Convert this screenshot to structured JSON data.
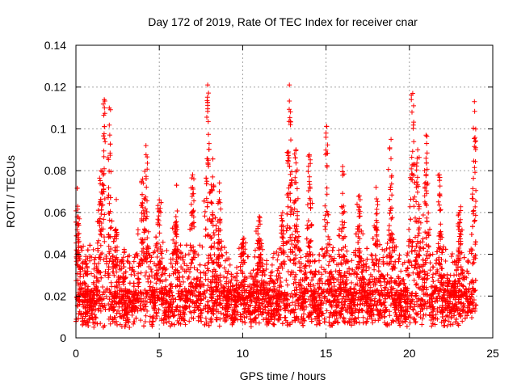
{
  "chart_data": {
    "type": "scatter",
    "title": "Day 172 of 2019, Rate Of TEC Index for receiver cnar",
    "xlabel": "GPS time / hours",
    "ylabel": "ROTI / TECUs",
    "xlim": [
      0,
      25
    ],
    "ylim": [
      0,
      0.14
    ],
    "xticks": [
      0,
      5,
      10,
      15,
      20,
      25
    ],
    "xtick_labels": [
      "0",
      "5",
      "10",
      "15",
      "20",
      "25"
    ],
    "yticks": [
      0,
      0.02,
      0.04,
      0.06,
      0.08,
      0.1,
      0.12,
      0.14
    ],
    "ytick_labels": [
      "0",
      "0.02",
      "0.04",
      "0.06",
      "0.08",
      "0.1",
      "0.12",
      "0.14"
    ],
    "grid": true,
    "marker": "+",
    "color": "#ff0000",
    "series": [
      {
        "name": "ROTI",
        "notes": "Dense cloud of ROTI values spanning 0-24 h; baseline ~0.005-0.04 TECU/min with peaks listed below",
        "peaks": [
          {
            "x": 0.1,
            "y": 0.063
          },
          {
            "x": 1.5,
            "y": 0.08
          },
          {
            "x": 1.7,
            "y": 0.114
          },
          {
            "x": 2.0,
            "y": 0.11
          },
          {
            "x": 2.4,
            "y": 0.052
          },
          {
            "x": 4.0,
            "y": 0.076
          },
          {
            "x": 4.2,
            "y": 0.092
          },
          {
            "x": 5.0,
            "y": 0.066
          },
          {
            "x": 6.0,
            "y": 0.058
          },
          {
            "x": 7.0,
            "y": 0.078
          },
          {
            "x": 7.9,
            "y": 0.121
          },
          {
            "x": 8.2,
            "y": 0.077
          },
          {
            "x": 8.6,
            "y": 0.07
          },
          {
            "x": 10.0,
            "y": 0.047
          },
          {
            "x": 11.0,
            "y": 0.058
          },
          {
            "x": 12.4,
            "y": 0.06
          },
          {
            "x": 12.8,
            "y": 0.121
          },
          {
            "x": 13.2,
            "y": 0.09
          },
          {
            "x": 14.0,
            "y": 0.087
          },
          {
            "x": 15.0,
            "y": 0.098
          },
          {
            "x": 16.0,
            "y": 0.082
          },
          {
            "x": 17.0,
            "y": 0.068
          },
          {
            "x": 18.0,
            "y": 0.072
          },
          {
            "x": 18.9,
            "y": 0.095
          },
          {
            "x": 20.2,
            "y": 0.117
          },
          {
            "x": 20.5,
            "y": 0.09
          },
          {
            "x": 21.0,
            "y": 0.097
          },
          {
            "x": 21.8,
            "y": 0.078
          },
          {
            "x": 23.0,
            "y": 0.06
          },
          {
            "x": 23.9,
            "y": 0.113
          }
        ]
      }
    ]
  }
}
